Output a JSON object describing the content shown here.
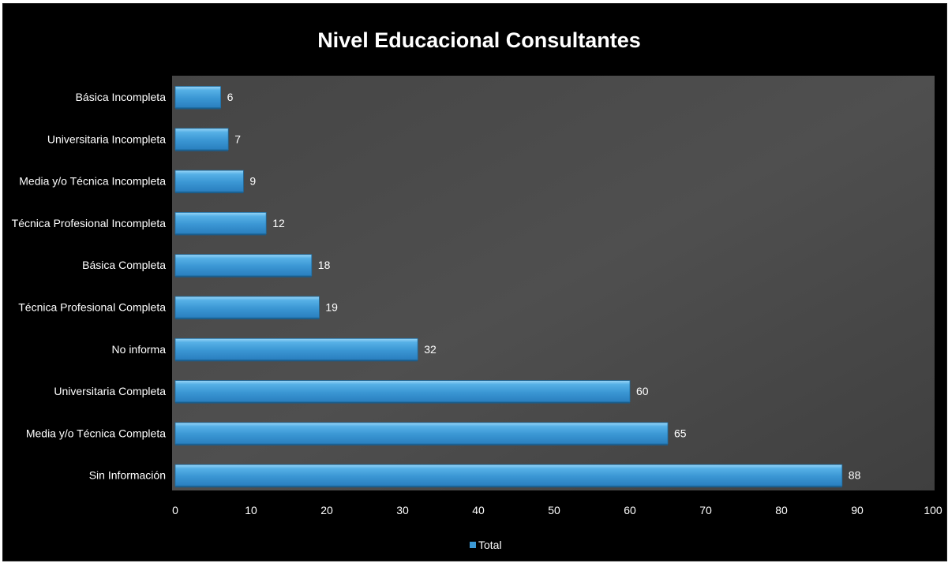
{
  "chart_data": {
    "type": "bar",
    "orientation": "horizontal",
    "title": "Nivel Educacional Consultantes",
    "categories": [
      "Básica Incompleta",
      "Universitaria Incompleta",
      "Media y/o Técnica Incompleta",
      "Técnica Profesional Incompleta",
      "Básica Completa",
      "Técnica Profesional Completa",
      "No informa",
      "Universitaria Completa",
      "Media y/o Técnica Completa",
      "Sin Información"
    ],
    "series": [
      {
        "name": "Total",
        "values": [
          6,
          7,
          9,
          12,
          18,
          19,
          32,
          60,
          65,
          88
        ]
      }
    ],
    "xlim": [
      0,
      100
    ],
    "xticks": [
      0,
      10,
      20,
      30,
      40,
      50,
      60,
      70,
      80,
      90,
      100
    ],
    "grid": false,
    "legend_position": "bottom",
    "data_labels": true,
    "colors": {
      "bar": "#3c9ad6",
      "bar_top": "#8fd0f5",
      "bar_edge": "#1f6ea3",
      "plot_background": "#4a4a4a",
      "frame_background": "#000000",
      "text": "#ffffff"
    }
  }
}
